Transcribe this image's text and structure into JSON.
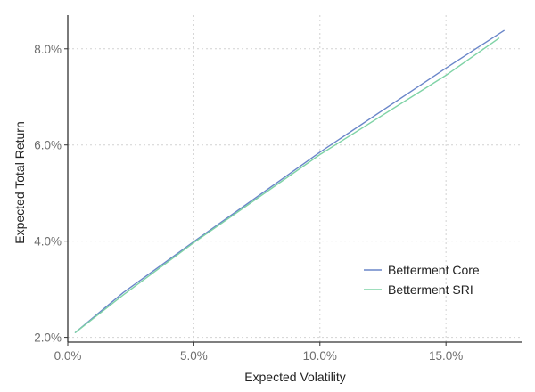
{
  "chart_data": {
    "type": "line",
    "title": "",
    "xlabel": "Expected Volatility",
    "ylabel": "Expected Total Return",
    "xlim": [
      0,
      18
    ],
    "ylim": [
      1.9,
      8.7
    ],
    "xticks": [
      0,
      5,
      10,
      15
    ],
    "xtick_labels": [
      "0.0%",
      "5.0%",
      "10.0%",
      "15.0%"
    ],
    "yticks": [
      2,
      4,
      6,
      8
    ],
    "ytick_labels": [
      "2.0%",
      "4.0%",
      "6.0%",
      "8.0%"
    ],
    "grid": true,
    "legend_position": "bottom-right",
    "series": [
      {
        "name": "Betterment Core",
        "color": "#6a86c9",
        "x": [
          0.3,
          2.2,
          5,
          10,
          15,
          17.3
        ],
        "y": [
          2.1,
          2.93,
          3.99,
          5.85,
          7.6,
          8.38
        ]
      },
      {
        "name": "Betterment SRI",
        "color": "#7fd3a6",
        "x": [
          0.3,
          2.2,
          5,
          10,
          15,
          17.1
        ],
        "y": [
          2.1,
          2.88,
          3.97,
          5.8,
          7.45,
          8.22
        ]
      }
    ]
  }
}
